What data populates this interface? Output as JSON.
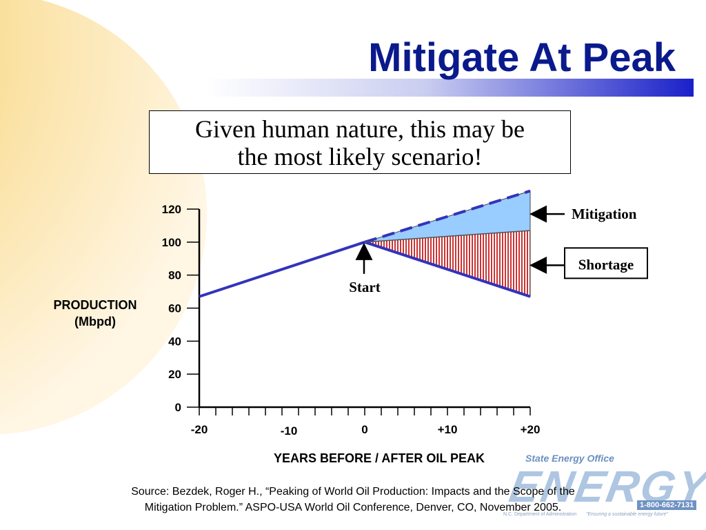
{
  "slide": {
    "title": "Mitigate At Peak",
    "callout_line1": "Given human nature, this may be",
    "callout_line2": "the most likely scenario!",
    "source_line1": "Source: Bezdek, Roger H., “Peaking of World Oil Production:  Impacts and the Scope of the",
    "source_line2": "Mitigation Problem.”  ASPO-USA World Oil Conference, Denver, CO, November 2005."
  },
  "logo": {
    "org": "State Energy Office",
    "word": "ENERGY",
    "phone": "1-800-662-7131",
    "department": "N.C. Department of Administration",
    "tagline": "\"Ensuring a sustainable energy future\""
  },
  "colors": {
    "title": "#0a1a8c",
    "line": "#3333bb",
    "mitigation_fill": "#99ccff",
    "shortage_fill": "#cc3333"
  },
  "chart_data": {
    "type": "line",
    "xlabel": "YEARS BEFORE / AFTER  OIL PEAK",
    "ylabel_line1": "PRODUCTION",
    "ylabel_line2": "(Mbpd)",
    "xlim": [
      -20,
      20
    ],
    "ylim": [
      0,
      120
    ],
    "x_ticks": [
      -20,
      -10,
      0,
      10,
      20
    ],
    "x_tick_labels": [
      "-20",
      "-10",
      "0",
      "+10",
      "+20"
    ],
    "y_ticks": [
      0,
      20,
      40,
      60,
      80,
      100,
      120
    ],
    "y_tick_labels": [
      "0",
      "20",
      "40",
      "60",
      "80",
      "100",
      "120"
    ],
    "grid": false,
    "series": [
      {
        "style": "solid",
        "points": [
          [
            -20,
            67
          ],
          [
            0,
            100
          ]
        ]
      },
      {
        "style": "dashed",
        "points": [
          [
            0,
            100
          ],
          [
            20,
            131
          ]
        ]
      },
      {
        "style": "solid",
        "points": [
          [
            0,
            100
          ],
          [
            20,
            67
          ]
        ]
      },
      {
        "style": "mitigated",
        "points": [
          [
            0,
            100
          ],
          [
            20,
            107
          ]
        ]
      }
    ],
    "regions": [
      {
        "name": "Mitigation",
        "x_range": [
          0,
          20
        ],
        "upper": [
          100,
          131
        ],
        "lower": [
          100,
          107
        ]
      },
      {
        "name": "Shortage",
        "x_range": [
          0,
          20
        ],
        "upper": [
          100,
          107
        ],
        "lower": [
          100,
          67
        ]
      }
    ],
    "annotations": [
      {
        "text": "Mitigation",
        "target_x": 20,
        "target_y": 117
      },
      {
        "text": "Shortage",
        "target_x": 20,
        "target_y": 86
      },
      {
        "text": "Start",
        "target_x": 0,
        "target_y": 100
      }
    ]
  }
}
